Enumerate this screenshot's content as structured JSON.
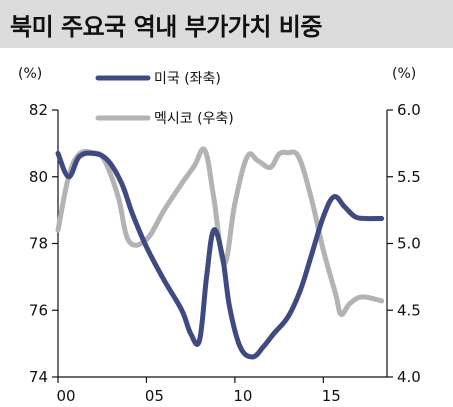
{
  "title": "북미 주요국 역내 부가가치 비중",
  "chart_data": {
    "type": "line",
    "x_ticks": [
      "00",
      "05",
      "10",
      "15"
    ],
    "x_tick_values": [
      0,
      5,
      10,
      15
    ],
    "x_range": [
      0,
      18.6
    ],
    "left_axis": {
      "unit": "(%)",
      "ticks": [
        "74",
        "76",
        "78",
        "80",
        "82"
      ],
      "ylim": [
        74,
        82
      ]
    },
    "right_axis": {
      "unit": "(%)",
      "ticks": [
        "4.0",
        "4.5",
        "5.0",
        "5.5",
        "6.0"
      ],
      "ylim": [
        4.0,
        6.0
      ]
    },
    "legend_placement": "top",
    "series": [
      {
        "name": "미국 (좌축)",
        "axis": "left",
        "color": "#3f4a80",
        "x": [
          0,
          0.6,
          1.2,
          2,
          2.8,
          3.6,
          4.2,
          5,
          6,
          7,
          7.5,
          8,
          8.4,
          8.8,
          9.3,
          9.7,
          10.3,
          11,
          11.6,
          12.2,
          13,
          13.7,
          14.3,
          15,
          15.6,
          16.2,
          16.8,
          17.4,
          18.3
        ],
        "y": [
          80.7,
          80.0,
          80.6,
          80.7,
          80.5,
          79.8,
          78.9,
          77.9,
          76.9,
          76.0,
          75.3,
          75.1,
          77.0,
          78.4,
          77.6,
          76.1,
          74.9,
          74.6,
          74.9,
          75.3,
          75.8,
          76.6,
          77.6,
          78.8,
          79.4,
          79.1,
          78.8,
          78.75,
          78.75
        ]
      },
      {
        "name": "멕시코 (우축)",
        "axis": "right",
        "color": "#b3b3b3",
        "x": [
          0,
          0.6,
          1.2,
          2,
          2.6,
          3.4,
          4,
          5,
          6,
          7,
          7.7,
          8.3,
          8.8,
          9.4,
          10,
          10.7,
          11.3,
          12,
          12.5,
          13,
          13.6,
          14.3,
          15,
          15.7,
          16,
          16.5,
          17.2,
          18.3
        ],
        "y": [
          5.1,
          5.5,
          5.67,
          5.68,
          5.63,
          5.35,
          5.02,
          5.03,
          5.25,
          5.45,
          5.58,
          5.7,
          5.35,
          4.85,
          5.3,
          5.65,
          5.62,
          5.57,
          5.67,
          5.68,
          5.65,
          5.35,
          4.95,
          4.62,
          4.47,
          4.55,
          4.6,
          4.57
        ]
      }
    ]
  }
}
